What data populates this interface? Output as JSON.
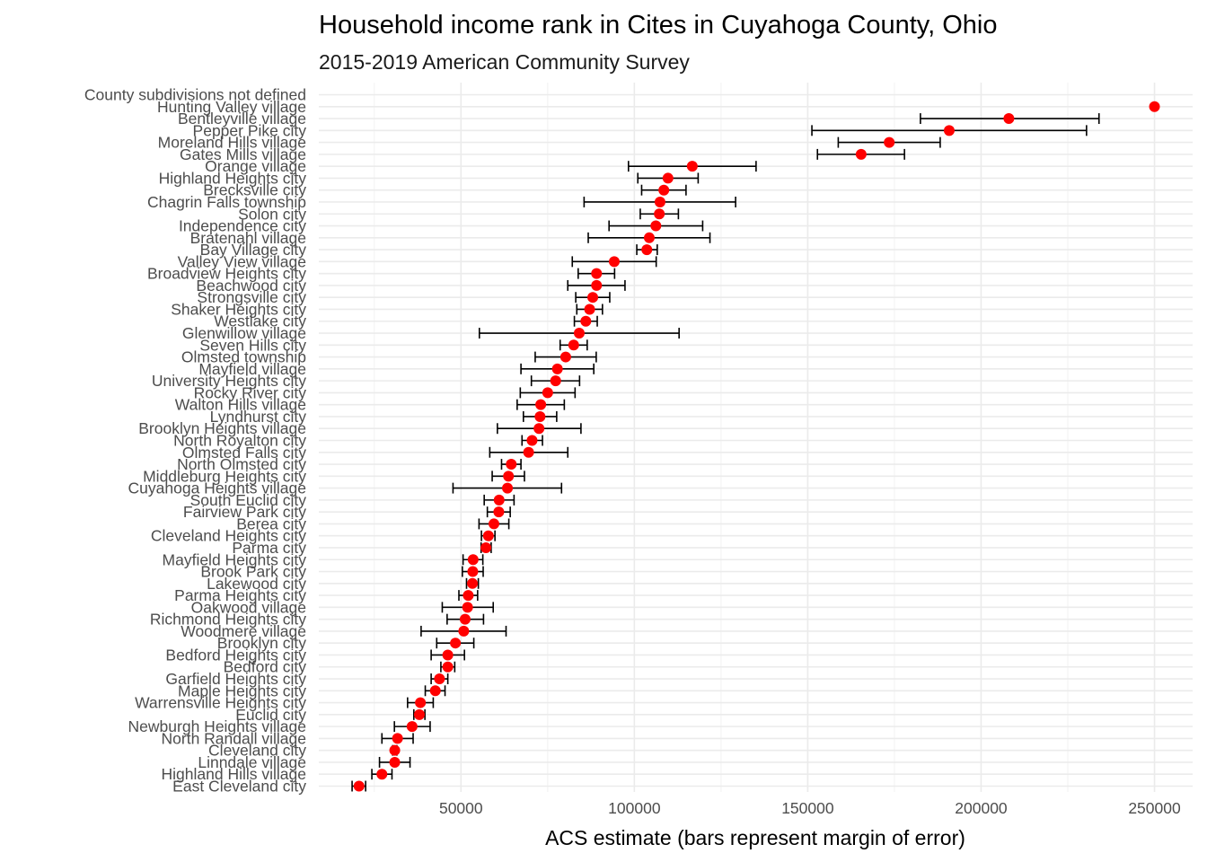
{
  "chart_data": {
    "type": "scatter",
    "title": "Household income rank in Cites in Cuyahoga County, Ohio",
    "subtitle": "2015-2019 American Community Survey",
    "xlabel": "ACS estimate (bars represent margin of error)",
    "ylabel": "",
    "xlim": [
      9000,
      261000
    ],
    "x_ticks": [
      50000,
      100000,
      150000,
      200000,
      250000
    ],
    "x_tick_labels": [
      "50000",
      "100000",
      "150000",
      "200000",
      "250000"
    ],
    "grid": true,
    "point_color": "#ff0000",
    "errorbar_color": "#000000",
    "points": [
      {
        "label": "County subdivisions not defined",
        "estimate": null,
        "moe_low": null,
        "moe_high": null
      },
      {
        "label": "Hunting Valley village",
        "estimate": 250001,
        "moe_low": null,
        "moe_high": null
      },
      {
        "label": "Bentleyville village",
        "estimate": 208000,
        "moe_low": 182500,
        "moe_high": 234000
      },
      {
        "label": "Pepper Pike city",
        "estimate": 190800,
        "moe_low": 151200,
        "moe_high": 230400
      },
      {
        "label": "Moreland Hills village",
        "estimate": 173500,
        "moe_low": 158800,
        "moe_high": 188200
      },
      {
        "label": "Gates Mills village",
        "estimate": 165400,
        "moe_low": 152800,
        "moe_high": 177900
      },
      {
        "label": "Orange village",
        "estimate": 116700,
        "moe_low": 98300,
        "moe_high": 135100
      },
      {
        "label": "Highland Heights city",
        "estimate": 109700,
        "moe_low": 101000,
        "moe_high": 118400
      },
      {
        "label": "Brecksville city",
        "estimate": 108500,
        "moe_low": 102100,
        "moe_high": 114900
      },
      {
        "label": "Chagrin Falls township",
        "estimate": 107400,
        "moe_low": 85500,
        "moe_high": 129200
      },
      {
        "label": "Solon city",
        "estimate": 107200,
        "moe_low": 101700,
        "moe_high": 112700
      },
      {
        "label": "Independence city",
        "estimate": 106200,
        "moe_low": 92700,
        "moe_high": 119700
      },
      {
        "label": "Bratenahl village",
        "estimate": 104300,
        "moe_low": 86700,
        "moe_high": 121800
      },
      {
        "label": "Bay Village city",
        "estimate": 103600,
        "moe_low": 100700,
        "moe_high": 106600
      },
      {
        "label": "Valley View village",
        "estimate": 94200,
        "moe_low": 82100,
        "moe_high": 106300
      },
      {
        "label": "Broadview Heights city",
        "estimate": 89100,
        "moe_low": 83800,
        "moe_high": 94300
      },
      {
        "label": "Beachwood city",
        "estimate": 89100,
        "moe_low": 80800,
        "moe_high": 97300
      },
      {
        "label": "Strongsville city",
        "estimate": 88000,
        "moe_low": 83100,
        "moe_high": 92900
      },
      {
        "label": "Shaker Heights city",
        "estimate": 87100,
        "moe_low": 83400,
        "moe_high": 90800
      },
      {
        "label": "Westlake city",
        "estimate": 86000,
        "moe_low": 82700,
        "moe_high": 89300
      },
      {
        "label": "Glenwillow village",
        "estimate": 84100,
        "moe_low": 55300,
        "moe_high": 112900
      },
      {
        "label": "Seven Hills city",
        "estimate": 82500,
        "moe_low": 78600,
        "moe_high": 86400
      },
      {
        "label": "Olmsted township",
        "estimate": 80200,
        "moe_low": 71400,
        "moe_high": 89000
      },
      {
        "label": "Mayfield village",
        "estimate": 77800,
        "moe_low": 67300,
        "moe_high": 88300
      },
      {
        "label": "University Heights city",
        "estimate": 77300,
        "moe_low": 70300,
        "moe_high": 84200
      },
      {
        "label": "Rocky River city",
        "estimate": 75000,
        "moe_low": 67100,
        "moe_high": 82900
      },
      {
        "label": "Walton Hills village",
        "estimate": 73000,
        "moe_low": 66200,
        "moe_high": 79800
      },
      {
        "label": "Lyndhurst city",
        "estimate": 72800,
        "moe_low": 68000,
        "moe_high": 77600
      },
      {
        "label": "Brooklyn Heights village",
        "estimate": 72500,
        "moe_low": 60500,
        "moe_high": 84600
      },
      {
        "label": "North Royalton city",
        "estimate": 70500,
        "moe_low": 67600,
        "moe_high": 73500
      },
      {
        "label": "Olmsted Falls city",
        "estimate": 69500,
        "moe_low": 58300,
        "moe_high": 80800
      },
      {
        "label": "North Olmsted city",
        "estimate": 64500,
        "moe_low": 61700,
        "moe_high": 67300
      },
      {
        "label": "Middleburg Heights city",
        "estimate": 63700,
        "moe_low": 59000,
        "moe_high": 68300
      },
      {
        "label": "Cuyahoga Heights village",
        "estimate": 63400,
        "moe_low": 47700,
        "moe_high": 79000
      },
      {
        "label": "South Euclid city",
        "estimate": 61000,
        "moe_low": 56700,
        "moe_high": 65300
      },
      {
        "label": "Fairview Park city",
        "estimate": 60900,
        "moe_low": 57600,
        "moe_high": 64200
      },
      {
        "label": "Berea city",
        "estimate": 59500,
        "moe_low": 55200,
        "moe_high": 63800
      },
      {
        "label": "Cleveland Heights city",
        "estimate": 57900,
        "moe_low": 55900,
        "moe_high": 59800
      },
      {
        "label": "Parma city",
        "estimate": 57200,
        "moe_low": 55800,
        "moe_high": 58700
      },
      {
        "label": "Mayfield Heights city",
        "estimate": 53500,
        "moe_low": 50600,
        "moe_high": 56300
      },
      {
        "label": "Brook Park city",
        "estimate": 53400,
        "moe_low": 50400,
        "moe_high": 56400
      },
      {
        "label": "Lakewood city",
        "estimate": 53300,
        "moe_low": 51600,
        "moe_high": 55000
      },
      {
        "label": "Parma Heights city",
        "estimate": 52100,
        "moe_low": 49400,
        "moe_high": 54800
      },
      {
        "label": "Oakwood village",
        "estimate": 51900,
        "moe_low": 44600,
        "moe_high": 59300
      },
      {
        "label": "Richmond Heights city",
        "estimate": 51200,
        "moe_low": 46000,
        "moe_high": 56500
      },
      {
        "label": "Woodmere village",
        "estimate": 50800,
        "moe_low": 38500,
        "moe_high": 63000
      },
      {
        "label": "Brooklyn city",
        "estimate": 48400,
        "moe_low": 43000,
        "moe_high": 53700
      },
      {
        "label": "Bedford Heights city",
        "estimate": 46200,
        "moe_low": 41400,
        "moe_high": 51000
      },
      {
        "label": "Bedford city",
        "estimate": 46200,
        "moe_low": 44200,
        "moe_high": 48200
      },
      {
        "label": "Garfield Heights city",
        "estimate": 43800,
        "moe_low": 41400,
        "moe_high": 46200
      },
      {
        "label": "Maple Heights city",
        "estimate": 42600,
        "moe_low": 39700,
        "moe_high": 45400
      },
      {
        "label": "Warrensville Heights city",
        "estimate": 38300,
        "moe_low": 34600,
        "moe_high": 42000
      },
      {
        "label": "Euclid city",
        "estimate": 38000,
        "moe_low": 36400,
        "moe_high": 39600
      },
      {
        "label": "Newburgh Heights village",
        "estimate": 35900,
        "moe_low": 30800,
        "moe_high": 41100
      },
      {
        "label": "North Randall village",
        "estimate": 31700,
        "moe_low": 27200,
        "moe_high": 36200
      },
      {
        "label": "Cleveland city",
        "estimate": 30900,
        "moe_low": 30300,
        "moe_high": 31500
      },
      {
        "label": "Linndale village",
        "estimate": 30900,
        "moe_low": 26500,
        "moe_high": 35300
      },
      {
        "label": "Highland Hills village",
        "estimate": 27200,
        "moe_low": 24300,
        "moe_high": 30100
      },
      {
        "label": "East Cleveland city",
        "estimate": 20600,
        "moe_low": 18600,
        "moe_high": 22500
      }
    ]
  }
}
